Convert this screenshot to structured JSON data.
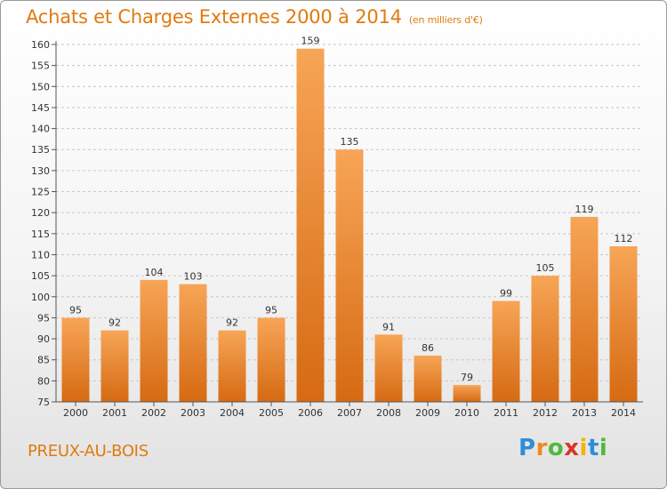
{
  "title": "Achats et Charges Externes 2000 à 2014",
  "unit": "(en milliers d'€)",
  "place": "PREUX-AU-BOIS",
  "logo": [
    "P",
    "r",
    "o",
    "x",
    "i",
    "t",
    "i"
  ],
  "colors": {
    "accent": "#e07a10",
    "bar_top": "#f7a557",
    "bar_bottom": "#d66a12"
  },
  "chart_data": {
    "type": "bar",
    "title": "Achats et Charges Externes 2000 à 2014",
    "subtitle": "(en milliers d'€)",
    "xlabel": "",
    "ylabel": "",
    "categories": [
      "2000",
      "2001",
      "2002",
      "2003",
      "2004",
      "2005",
      "2006",
      "2007",
      "2008",
      "2009",
      "2010",
      "2011",
      "2012",
      "2013",
      "2014"
    ],
    "values": [
      95,
      92,
      104,
      103,
      92,
      95,
      159,
      135,
      91,
      86,
      79,
      99,
      105,
      119,
      112
    ],
    "ylim": [
      75,
      160
    ],
    "yticks": [
      75,
      80,
      85,
      90,
      95,
      100,
      105,
      110,
      115,
      120,
      125,
      130,
      135,
      140,
      145,
      150,
      155,
      160
    ],
    "grid": "horizontal-dashed",
    "legend": "none"
  }
}
